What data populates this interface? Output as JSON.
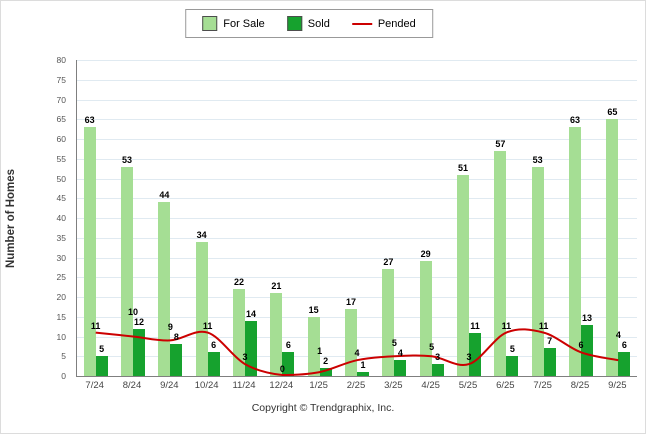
{
  "chart_data": {
    "type": "bar+line",
    "categories": [
      "7/24",
      "8/24",
      "9/24",
      "10/24",
      "11/24",
      "12/24",
      "1/25",
      "2/25",
      "3/25",
      "4/25",
      "5/25",
      "6/25",
      "7/25",
      "8/25",
      "9/25"
    ],
    "series": [
      {
        "name": "For Sale",
        "type": "bar",
        "color": "#A5DE94",
        "values": [
          63,
          53,
          44,
          34,
          22,
          21,
          15,
          17,
          27,
          29,
          51,
          57,
          53,
          63,
          65
        ]
      },
      {
        "name": "Sold",
        "type": "bar",
        "color": "#16A22E",
        "values": [
          5,
          12,
          8,
          6,
          14,
          6,
          2,
          1,
          4,
          3,
          11,
          5,
          7,
          13,
          6
        ]
      },
      {
        "name": "Pended",
        "type": "line",
        "color": "#CC0000",
        "values": [
          11,
          10,
          9,
          11,
          3,
          0,
          1,
          4,
          5,
          5,
          3,
          11,
          11,
          6,
          4
        ]
      }
    ],
    "ylabel": "Number of Homes",
    "ylim": [
      0,
      80
    ],
    "ytick_step": 5,
    "grid": true,
    "legend_position": "top",
    "footer": "Copyright © Trendgraphix, Inc."
  }
}
